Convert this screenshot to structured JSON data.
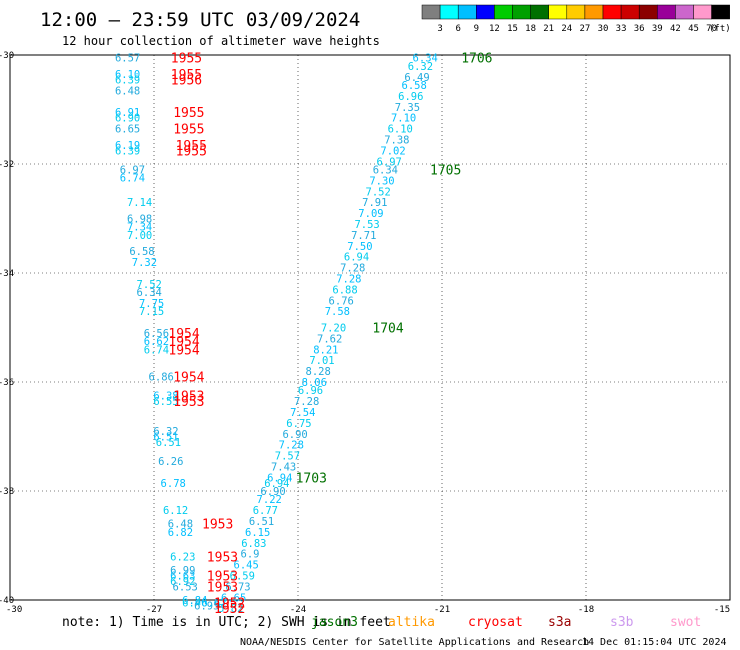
{
  "title": "12:00 — 23:59 UTC 03/09/2024",
  "subtitle": "12 hour collection of altimeter wave heights",
  "footer_credit": "NOAA/NESDIS Center for Satellite Applications and Research",
  "footer_timestamp": "14 Dec 01:15:04 UTC 2024",
  "note": "note: 1) Time is in UTC; 2) SWH is in feet",
  "legend": {
    "ticks": [
      "3",
      "6",
      "9",
      "12",
      "15",
      "18",
      "21",
      "24",
      "27",
      "30",
      "33",
      "36",
      "39",
      "42",
      "45",
      "70"
    ],
    "unit": "(ft)",
    "colors": [
      "#7f7f7f",
      "#00ffff",
      "#00bfff",
      "#0000ff",
      "#00cc00",
      "#00a000",
      "#007000",
      "#ffff00",
      "#ffcc00",
      "#ff9900",
      "#ff0000",
      "#cc0000",
      "#8b0000",
      "#990099",
      "#cc66cc",
      "#ff99cc",
      "#000000"
    ]
  },
  "satellites": [
    {
      "name": "jason3",
      "color": "#007000"
    },
    {
      "name": "altika",
      "color": "#ff9900"
    },
    {
      "name": "cryosat",
      "color": "#ff0000"
    },
    {
      "name": "s3a",
      "color": "#990000"
    },
    {
      "name": "s3b",
      "color": "#cc99ee"
    },
    {
      "name": "swot",
      "color": "#ff99cc"
    }
  ],
  "chart_data": {
    "type": "scatter",
    "xlabel": "",
    "ylabel": "",
    "xlim": [
      -30,
      -15
    ],
    "ylim": [
      -40,
      -30
    ],
    "xticks": [
      -27,
      -24,
      -21,
      -18,
      -15
    ],
    "xtick_labels": [
      "-27",
      "-24",
      "-21",
      "-18",
      "-15"
    ],
    "yticks": [
      -30,
      -32,
      -34,
      -36,
      -38,
      -40
    ],
    "ytick_labels": [
      "-30",
      "-32",
      "-34",
      "-36",
      "-38",
      "-40"
    ],
    "x_corner_label": "-30",
    "grid": true,
    "points": [
      {
        "x": -21.35,
        "y": -30.05,
        "v": "6.34"
      },
      {
        "x": -21.45,
        "y": -30.2,
        "v": "6.32"
      },
      {
        "x": -21.52,
        "y": -30.4,
        "v": "6.49"
      },
      {
        "x": -21.58,
        "y": -30.55,
        "v": "6.58"
      },
      {
        "x": -21.65,
        "y": -30.75,
        "v": "6.96"
      },
      {
        "x": -21.72,
        "y": -30.95,
        "v": "7.35"
      },
      {
        "x": -21.8,
        "y": -31.15,
        "v": "7.10"
      },
      {
        "x": -21.87,
        "y": -31.35,
        "v": "6.10"
      },
      {
        "x": -21.94,
        "y": -31.55,
        "v": "7.38"
      },
      {
        "x": -22.02,
        "y": -31.75,
        "v": "7.02"
      },
      {
        "x": -22.1,
        "y": -31.95,
        "v": "6.97"
      },
      {
        "x": -22.18,
        "y": -32.1,
        "v": "6.34"
      },
      {
        "x": -22.25,
        "y": -32.3,
        "v": "7.30"
      },
      {
        "x": -22.33,
        "y": -32.5,
        "v": "7.52"
      },
      {
        "x": -22.4,
        "y": -32.7,
        "v": "7.91"
      },
      {
        "x": -22.48,
        "y": -32.9,
        "v": "7.09"
      },
      {
        "x": -22.56,
        "y": -33.1,
        "v": "7.53"
      },
      {
        "x": -22.63,
        "y": -33.3,
        "v": "7.71"
      },
      {
        "x": -22.71,
        "y": -33.5,
        "v": "7.50"
      },
      {
        "x": -22.78,
        "y": -33.7,
        "v": "6.94"
      },
      {
        "x": -22.86,
        "y": -33.9,
        "v": "7.28"
      },
      {
        "x": -22.94,
        "y": -34.1,
        "v": "7.28"
      },
      {
        "x": -23.02,
        "y": -34.3,
        "v": "6.88"
      },
      {
        "x": -23.1,
        "y": -34.5,
        "v": "6.76"
      },
      {
        "x": -23.18,
        "y": -34.7,
        "v": "7.58"
      },
      {
        "x": -23.26,
        "y": -35.0,
        "v": "7.20"
      },
      {
        "x": -23.34,
        "y": -35.2,
        "v": "7.62"
      },
      {
        "x": -23.42,
        "y": -35.4,
        "v": "8.21"
      },
      {
        "x": -23.5,
        "y": -35.6,
        "v": "7.01"
      },
      {
        "x": -23.58,
        "y": -35.8,
        "v": "8.28"
      },
      {
        "x": -23.66,
        "y": -36.0,
        "v": "8.06"
      },
      {
        "x": -23.74,
        "y": -36.15,
        "v": "6.96"
      },
      {
        "x": -23.82,
        "y": -36.35,
        "v": "7.28"
      },
      {
        "x": -23.9,
        "y": -36.55,
        "v": "7.54"
      },
      {
        "x": -23.98,
        "y": -36.75,
        "v": "6.75"
      },
      {
        "x": -24.06,
        "y": -36.95,
        "v": "6.90"
      },
      {
        "x": -24.14,
        "y": -37.15,
        "v": "7.28"
      },
      {
        "x": -24.22,
        "y": -37.35,
        "v": "7.57"
      },
      {
        "x": -24.3,
        "y": -37.55,
        "v": "7.43"
      },
      {
        "x": -24.38,
        "y": -37.75,
        "v": "6.94"
      },
      {
        "x": -24.44,
        "y": -37.85,
        "v": "6.94"
      },
      {
        "x": -24.52,
        "y": -38.0,
        "v": "6.90"
      },
      {
        "x": -24.6,
        "y": -38.15,
        "v": "7.22"
      },
      {
        "x": -24.68,
        "y": -38.35,
        "v": "6.77"
      },
      {
        "x": -24.76,
        "y": -38.55,
        "v": "6.51"
      },
      {
        "x": -24.84,
        "y": -38.75,
        "v": "6.15"
      },
      {
        "x": -24.92,
        "y": -38.95,
        "v": "6.83"
      },
      {
        "x": -25.0,
        "y": -39.15,
        "v": "6.9"
      },
      {
        "x": -25.08,
        "y": -39.35,
        "v": "6.45"
      },
      {
        "x": -25.16,
        "y": -39.55,
        "v": "6.59"
      },
      {
        "x": -25.25,
        "y": -39.75,
        "v": "6.73"
      },
      {
        "x": -25.34,
        "y": -39.95,
        "v": "6.65"
      },
      {
        "x": -25.4,
        "y": -40.15,
        "v": "5.82"
      },
      {
        "x": -27.55,
        "y": -30.05,
        "v": "6.57"
      },
      {
        "x": -27.55,
        "y": -30.35,
        "v": "6.10"
      },
      {
        "x": -27.55,
        "y": -30.45,
        "v": "6.39"
      },
      {
        "x": -27.55,
        "y": -30.65,
        "v": "6.48"
      },
      {
        "x": -27.55,
        "y": -31.05,
        "v": "6.91"
      },
      {
        "x": -27.55,
        "y": -31.15,
        "v": "6.90"
      },
      {
        "x": -27.55,
        "y": -31.35,
        "v": "6.65"
      },
      {
        "x": -27.55,
        "y": -31.65,
        "v": "6.19"
      },
      {
        "x": -27.55,
        "y": -31.75,
        "v": "6.39"
      },
      {
        "x": -27.45,
        "y": -32.1,
        "v": "6.97"
      },
      {
        "x": -27.45,
        "y": -32.25,
        "v": "6.74"
      },
      {
        "x": -27.3,
        "y": -32.7,
        "v": "7.14"
      },
      {
        "x": -27.3,
        "y": -33.0,
        "v": "6.98"
      },
      {
        "x": -27.3,
        "y": -33.15,
        "v": "7.34"
      },
      {
        "x": -27.3,
        "y": -33.3,
        "v": "7.00"
      },
      {
        "x": -27.25,
        "y": -33.6,
        "v": "6.58"
      },
      {
        "x": -27.2,
        "y": -33.8,
        "v": "7.32"
      },
      {
        "x": -27.1,
        "y": -34.2,
        "v": "7.52"
      },
      {
        "x": -27.1,
        "y": -34.35,
        "v": "6.34"
      },
      {
        "x": -27.05,
        "y": -34.55,
        "v": "7.75"
      },
      {
        "x": -27.05,
        "y": -34.7,
        "v": "7.15"
      },
      {
        "x": -26.95,
        "y": -35.1,
        "v": "6.56"
      },
      {
        "x": -26.95,
        "y": -35.25,
        "v": "6.62"
      },
      {
        "x": -26.95,
        "y": -35.4,
        "v": "6.74"
      },
      {
        "x": -26.85,
        "y": -35.9,
        "v": "6.86"
      },
      {
        "x": -26.75,
        "y": -36.25,
        "v": "6.38"
      },
      {
        "x": -26.75,
        "y": -36.35,
        "v": "6.55"
      },
      {
        "x": -26.75,
        "y": -36.9,
        "v": "6.32"
      },
      {
        "x": -26.75,
        "y": -37.0,
        "v": "6.51"
      },
      {
        "x": -26.7,
        "y": -37.1,
        "v": "6.51"
      },
      {
        "x": -26.65,
        "y": -37.45,
        "v": "6.26"
      },
      {
        "x": -26.6,
        "y": -37.85,
        "v": "6.78"
      },
      {
        "x": -26.55,
        "y": -38.35,
        "v": "6.12"
      },
      {
        "x": -26.45,
        "y": -38.6,
        "v": "6.48"
      },
      {
        "x": -26.45,
        "y": -38.75,
        "v": "6.82"
      },
      {
        "x": -26.4,
        "y": -39.2,
        "v": "6.23"
      },
      {
        "x": -26.4,
        "y": -39.45,
        "v": "6.99"
      },
      {
        "x": -26.4,
        "y": -39.55,
        "v": "6.63"
      },
      {
        "x": -26.4,
        "y": -39.65,
        "v": "6.92"
      },
      {
        "x": -26.35,
        "y": -39.75,
        "v": "6.53"
      },
      {
        "x": -26.15,
        "y": -40.0,
        "v": "6.84"
      },
      {
        "x": -26.15,
        "y": -40.05,
        "v": "6.46"
      },
      {
        "x": -25.9,
        "y": -40.1,
        "v": "6.95"
      },
      {
        "x": -25.75,
        "y": -40.05,
        "v": "6.62"
      }
    ],
    "time_labels": [
      {
        "x": -20.6,
        "y": -30.05,
        "text": "1706",
        "sat": "jason3"
      },
      {
        "x": -21.25,
        "y": -32.1,
        "text": "1705",
        "sat": "jason3"
      },
      {
        "x": -22.45,
        "y": -35.0,
        "text": "1704",
        "sat": "jason3"
      },
      {
        "x": -24.05,
        "y": -37.75,
        "text": "1703",
        "sat": "jason3"
      },
      {
        "x": -26.65,
        "y": -30.05,
        "text": "1955",
        "sat": "cryosat"
      },
      {
        "x": -26.65,
        "y": -30.35,
        "text": "1955",
        "sat": "cryosat"
      },
      {
        "x": -26.65,
        "y": -30.45,
        "text": "1956",
        "sat": "cryosat"
      },
      {
        "x": -26.6,
        "y": -31.05,
        "text": "1955",
        "sat": "cryosat"
      },
      {
        "x": -26.6,
        "y": -31.35,
        "text": "1955",
        "sat": "cryosat"
      },
      {
        "x": -26.55,
        "y": -31.65,
        "text": "1955",
        "sat": "cryosat"
      },
      {
        "x": -26.55,
        "y": -31.75,
        "text": "1955",
        "sat": "cryosat"
      },
      {
        "x": -26.7,
        "y": -35.1,
        "text": "1954",
        "sat": "cryosat"
      },
      {
        "x": -26.7,
        "y": -35.25,
        "text": "1954",
        "sat": "cryosat"
      },
      {
        "x": -26.7,
        "y": -35.4,
        "text": "1954",
        "sat": "cryosat"
      },
      {
        "x": -26.6,
        "y": -35.9,
        "text": "1954",
        "sat": "cryosat"
      },
      {
        "x": -26.6,
        "y": -36.25,
        "text": "1953",
        "sat": "cryosat"
      },
      {
        "x": -26.6,
        "y": -36.35,
        "text": "1953",
        "sat": "cryosat"
      },
      {
        "x": -26.0,
        "y": -38.6,
        "text": "1953",
        "sat": "cryosat"
      },
      {
        "x": -25.9,
        "y": -39.2,
        "text": "1953",
        "sat": "cryosat"
      },
      {
        "x": -25.9,
        "y": -39.55,
        "text": "1953",
        "sat": "cryosat"
      },
      {
        "x": -25.9,
        "y": -39.75,
        "text": "1953",
        "sat": "cryosat"
      },
      {
        "x": -25.75,
        "y": -40.05,
        "text": "1952",
        "sat": "cryosat"
      },
      {
        "x": -25.75,
        "y": -40.15,
        "text": "1952",
        "sat": "cryosat"
      }
    ]
  }
}
